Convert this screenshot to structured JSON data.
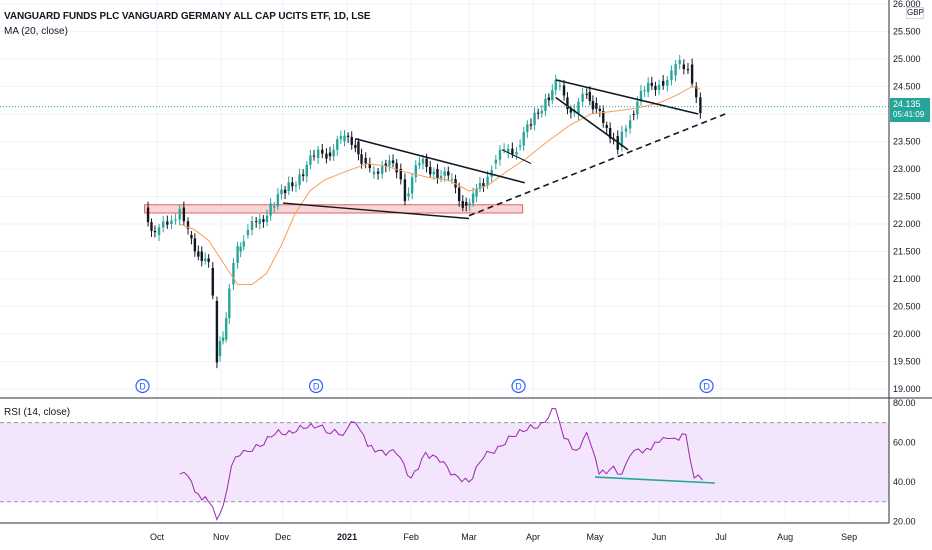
{
  "header": {
    "title": "VANGUARD FUNDS PLC VANGUARD GERMANY ALL CAP UCITS ETF, 1D, LSE",
    "ma_label": "MA (20, close)",
    "rsi_label": "RSI (14, close)",
    "currency": "GBP",
    "last_price": "24.135",
    "countdown": "05:41:09"
  },
  "colors": {
    "up": "#26a69a",
    "down": "#131722",
    "ma": "#f5a05a",
    "rsi": "#9c27b0",
    "rsi_band": "#f3e5fb",
    "zone": "#f7c8c8",
    "zone_border": "#e06060",
    "accent": "#2962ff"
  },
  "dividend_marker": "D",
  "chart_data": [
    {
      "type": "candlestick",
      "title": "VANGUARD FUNDS PLC VANGUARD GERMANY ALL CAP UCITS ETF, 1D, LSE",
      "ylabel": "GBP",
      "ylim": [
        18.9,
        26.0
      ],
      "y_ticks": [
        "19.000",
        "19.500",
        "20.000",
        "20.500",
        "21.000",
        "21.500",
        "22.000",
        "22.500",
        "23.000",
        "23.500",
        "24.000",
        "24.500",
        "25.000",
        "25.500",
        "26.000"
      ],
      "x_ticks": [
        "Oct",
        "Nov",
        "Dec",
        "2021",
        "Feb",
        "Mar",
        "Apr",
        "May",
        "Jun",
        "Jul",
        "Aug",
        "Sep"
      ],
      "x_tick_dates": [
        "2020-10-01",
        "2020-11-01",
        "2020-12-01",
        "2021-01-01",
        "2021-02-01",
        "2021-03-01",
        "2021-04-01",
        "2021-05-01",
        "2021-06-01",
        "2021-07-01",
        "2021-08-01",
        "2021-09-01"
      ],
      "close_series": {
        "name": "close",
        "dates": [
          "2020-09-25",
          "2020-09-30",
          "2020-10-06",
          "2020-10-12",
          "2020-10-16",
          "2020-10-21",
          "2020-10-26",
          "2020-10-28",
          "2020-10-30",
          "2020-11-02",
          "2020-11-05",
          "2020-11-09",
          "2020-11-12",
          "2020-11-18",
          "2020-11-25",
          "2020-12-02",
          "2020-12-09",
          "2020-12-16",
          "2020-12-22",
          "2020-12-29",
          "2021-01-05",
          "2021-01-08",
          "2021-01-12",
          "2021-01-18",
          "2021-01-25",
          "2021-01-29",
          "2021-02-05",
          "2021-02-12",
          "2021-02-19",
          "2021-02-26",
          "2021-03-03",
          "2021-03-08",
          "2021-03-12",
          "2021-03-18",
          "2021-03-24",
          "2021-03-31",
          "2021-04-07",
          "2021-04-12",
          "2021-04-16",
          "2021-04-21",
          "2021-04-27",
          "2021-04-30",
          "2021-05-05",
          "2021-05-10",
          "2021-05-12",
          "2021-05-18",
          "2021-05-25",
          "2021-06-01",
          "2021-06-07",
          "2021-06-11",
          "2021-06-15",
          "2021-06-17",
          "2021-06-21"
        ],
        "values": [
          22.3,
          21.8,
          22.0,
          22.3,
          21.8,
          21.5,
          21.2,
          20.6,
          19.6,
          19.9,
          20.9,
          21.5,
          21.8,
          22.0,
          22.3,
          22.6,
          22.9,
          23.2,
          23.3,
          23.5,
          23.5,
          23.2,
          22.9,
          23.1,
          23.0,
          22.5,
          23.1,
          23.0,
          22.8,
          22.4,
          22.5,
          22.7,
          23.1,
          23.3,
          23.4,
          23.8,
          24.3,
          24.5,
          24.3,
          24.0,
          24.4,
          24.2,
          23.8,
          23.6,
          23.4,
          24.0,
          24.4,
          24.6,
          24.7,
          24.9,
          24.9,
          24.5,
          24.135
        ]
      },
      "ma_series": {
        "name": "MA (20, close)",
        "dates": [
          "2020-10-12",
          "2020-10-19",
          "2020-10-26",
          "2020-11-02",
          "2020-11-09",
          "2020-11-16",
          "2020-11-23",
          "2020-11-30",
          "2020-12-07",
          "2020-12-14",
          "2020-12-21",
          "2020-12-31",
          "2021-01-11",
          "2021-01-20",
          "2021-01-29",
          "2021-02-09",
          "2021-02-19",
          "2021-03-01",
          "2021-03-10",
          "2021-03-19",
          "2021-03-29",
          "2021-04-08",
          "2021-04-19",
          "2021-04-29",
          "2021-05-10",
          "2021-05-20",
          "2021-06-01",
          "2021-06-10",
          "2021-06-17",
          "2021-06-21"
        ],
        "values": [
          22.0,
          21.9,
          21.7,
          21.3,
          20.9,
          20.9,
          21.1,
          21.6,
          22.2,
          22.6,
          22.8,
          22.95,
          23.1,
          23.05,
          22.95,
          22.85,
          22.8,
          22.6,
          22.7,
          22.95,
          23.2,
          23.5,
          23.8,
          24.0,
          24.05,
          24.1,
          24.2,
          24.35,
          24.5,
          24.45
        ]
      },
      "support_zone": {
        "from": 22.2,
        "to": 22.35,
        "start": "2020-09-25",
        "end": "2021-03-27"
      },
      "dividends": [
        "2020-09-24",
        "2020-12-17",
        "2021-03-25",
        "2021-06-24"
      ]
    },
    {
      "type": "line",
      "title": "RSI (14, close)",
      "ylim": [
        20,
        80
      ],
      "y_ticks": [
        "20.00",
        "40.00",
        "60.00",
        "80.00"
      ],
      "band": [
        30,
        70
      ],
      "series": [
        {
          "name": "RSI (14, close)",
          "dates": [
            "2020-10-12",
            "2020-10-16",
            "2020-10-21",
            "2020-10-26",
            "2020-10-30",
            "2020-11-02",
            "2020-11-06",
            "2020-11-12",
            "2020-11-20",
            "2020-11-27",
            "2020-12-04",
            "2020-12-11",
            "2020-12-18",
            "2020-12-28",
            "2021-01-05",
            "2021-01-11",
            "2021-01-18",
            "2021-01-25",
            "2021-02-01",
            "2021-02-08",
            "2021-02-15",
            "2021-02-22",
            "2021-03-01",
            "2021-03-08",
            "2021-03-15",
            "2021-03-22",
            "2021-03-29",
            "2021-04-05",
            "2021-04-12",
            "2021-04-16",
            "2021-04-22",
            "2021-04-27",
            "2021-05-03",
            "2021-05-10",
            "2021-05-14",
            "2021-05-20",
            "2021-05-26",
            "2021-06-01",
            "2021-06-07",
            "2021-06-14",
            "2021-06-18",
            "2021-06-22"
          ],
          "values": [
            44,
            43,
            34,
            30,
            21,
            28,
            48,
            56,
            58,
            64,
            66,
            67,
            68,
            64,
            70,
            58,
            56,
            54,
            42,
            55,
            50,
            44,
            40,
            52,
            58,
            63,
            66,
            70,
            77,
            62,
            56,
            65,
            44,
            48,
            44,
            56,
            57,
            60,
            62,
            64,
            42,
            41
          ]
        }
      ]
    }
  ]
}
